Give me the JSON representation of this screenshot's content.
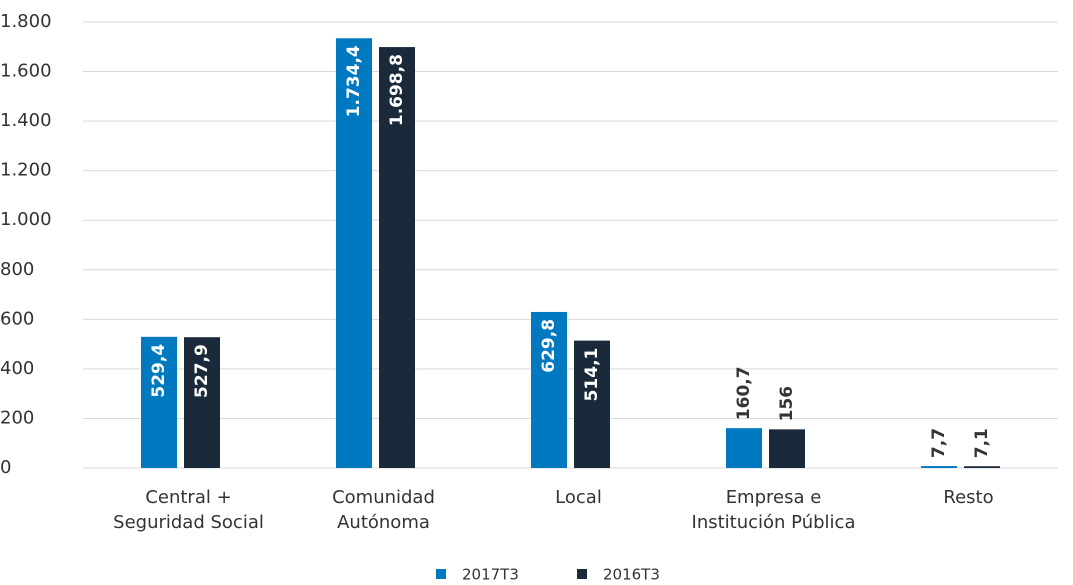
{
  "chart_data": {
    "type": "bar",
    "categories": [
      [
        "Central +",
        "Seguridad Social"
      ],
      [
        "Comunidad",
        "Autónoma"
      ],
      [
        "Local"
      ],
      [
        "Empresa e",
        "Institución Pública"
      ],
      [
        "Resto"
      ]
    ],
    "series": [
      {
        "name": "2017T3",
        "color": "#0079c1",
        "values": [
          529.4,
          1734.4,
          629.8,
          160.7,
          7.7
        ],
        "value_labels": [
          "529,4",
          "1.734,4",
          "629,8",
          "160,7",
          "7,7"
        ]
      },
      {
        "name": "2016T3",
        "color": "#1b2a3a",
        "values": [
          527.9,
          1698.8,
          514.1,
          156,
          7.1
        ],
        "value_labels": [
          "527,9",
          "1.698,8",
          "514,1",
          "156",
          "7,1"
        ]
      }
    ],
    "ylim": [
      0,
      1800
    ],
    "yticks": [
      0,
      200,
      400,
      600,
      800,
      {
        "value": 1000,
        "label": "1.000"
      },
      {
        "value": 1200,
        "label": "1.200"
      },
      {
        "value": 1400,
        "label": "1.400"
      },
      {
        "value": 1600,
        "label": "1.600"
      },
      {
        "value": 1800,
        "label": "1.800"
      }
    ],
    "grid": true,
    "legend": "bottom"
  }
}
